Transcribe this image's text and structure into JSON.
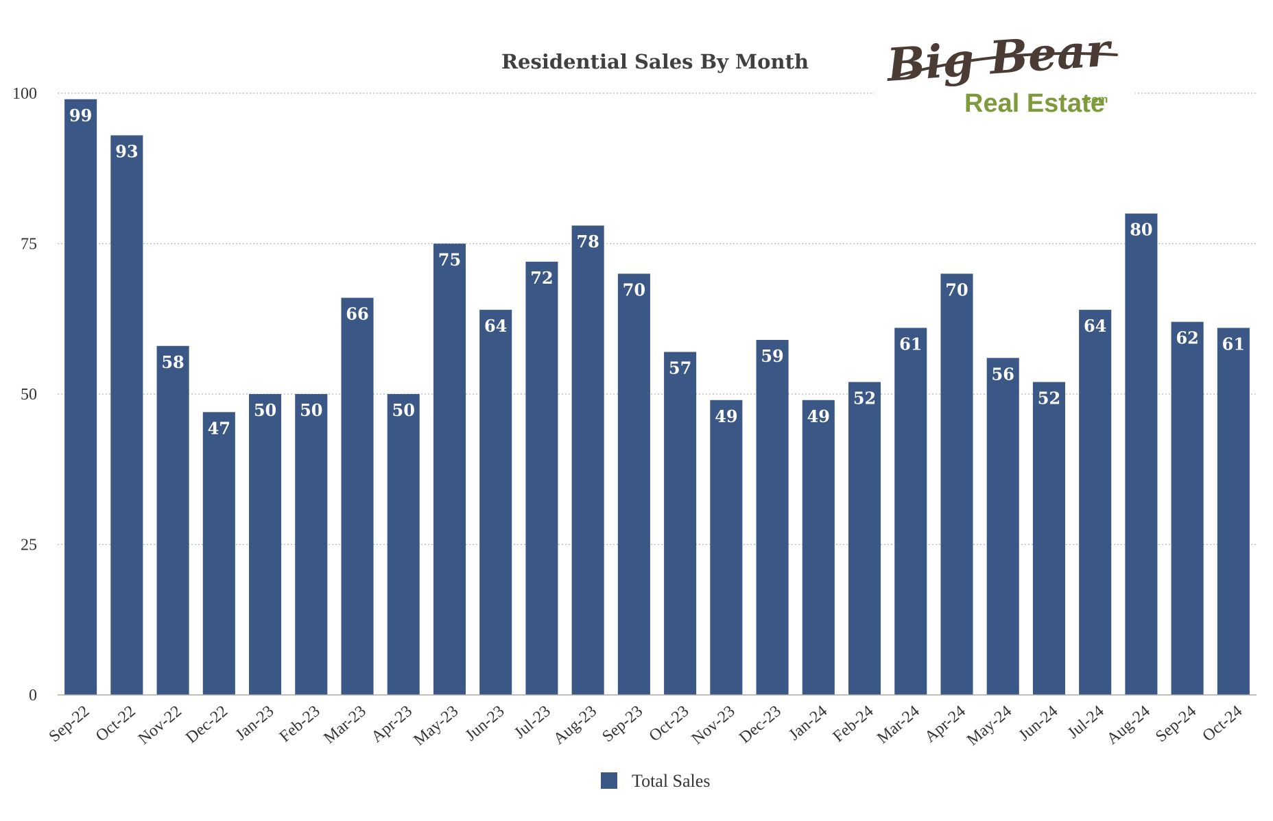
{
  "logo": {
    "line1": "Big Bear",
    "line2": "Real Estate",
    "suffix": ".com"
  },
  "colors": {
    "bar": "#3a5786",
    "grid": "#b5b5b5",
    "axis": "#aaaaaa"
  },
  "chart_data": {
    "type": "bar",
    "title": "Residential Sales By Month",
    "xlabel": "",
    "ylabel": "",
    "ylim": [
      0,
      100
    ],
    "yticks": [
      0,
      25,
      50,
      75,
      100
    ],
    "grid": true,
    "legend_position": "bottom",
    "categories": [
      "Sep-22",
      "Oct-22",
      "Nov-22",
      "Dec-22",
      "Jan-23",
      "Feb-23",
      "Mar-23",
      "Apr-23",
      "May-23",
      "Jun-23",
      "Jul-23",
      "Aug-23",
      "Sep-23",
      "Oct-23",
      "Nov-23",
      "Dec-23",
      "Jan-24",
      "Feb-24",
      "Mar-24",
      "Apr-24",
      "May-24",
      "Jun-24",
      "Jul-24",
      "Aug-24",
      "Sep-24",
      "Oct-24"
    ],
    "series": [
      {
        "name": "Total Sales",
        "values": [
          99,
          93,
          58,
          47,
          50,
          50,
          66,
          50,
          75,
          64,
          72,
          78,
          70,
          57,
          49,
          59,
          49,
          52,
          61,
          70,
          56,
          52,
          64,
          80,
          62,
          61
        ]
      }
    ]
  }
}
